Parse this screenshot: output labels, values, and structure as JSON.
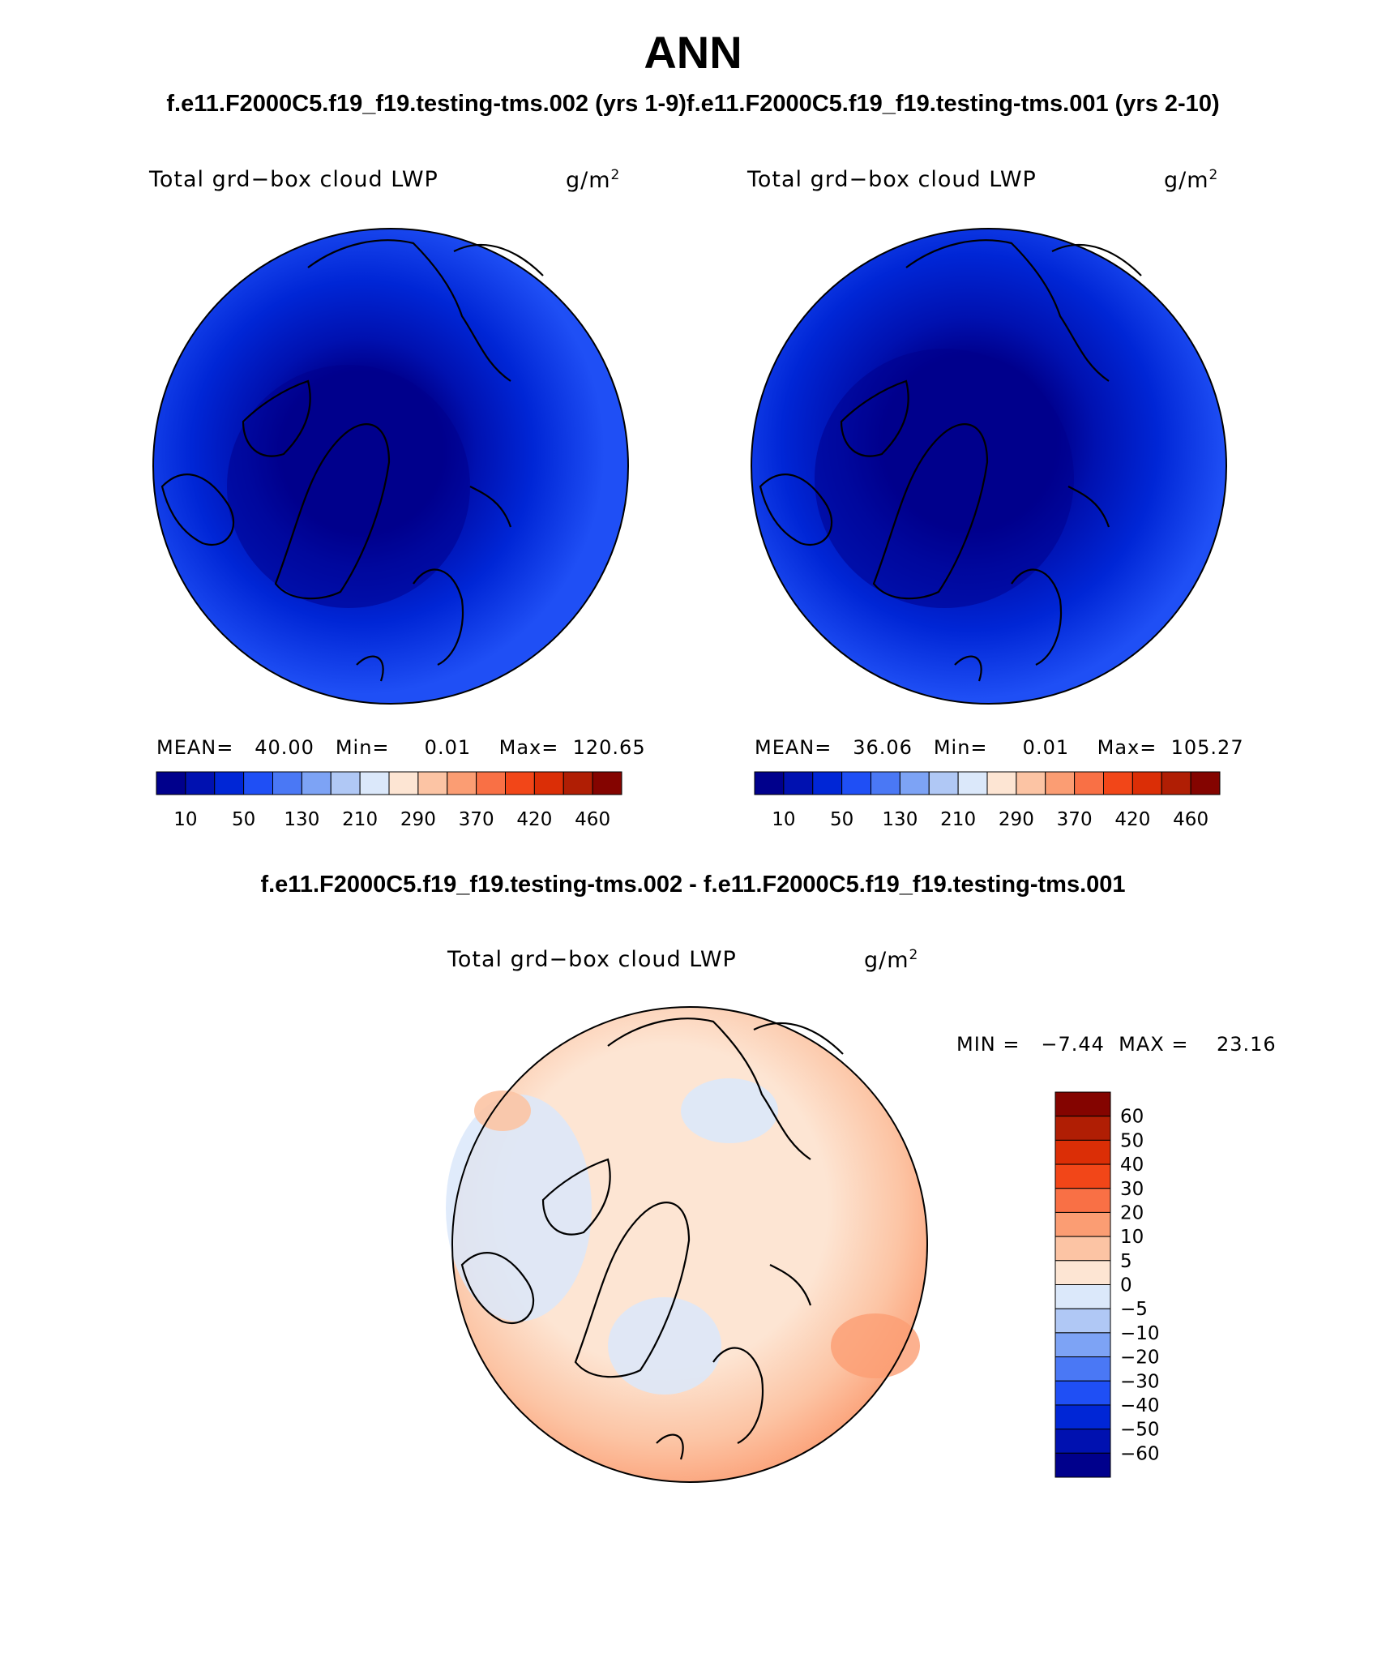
{
  "title": "ANN",
  "subtitle": "f.e11.F2000C5.f19_f19.testing-tms.002 (yrs 1-9)f.e11.F2000C5.f19_f19.testing-tms.001 (yrs 2-10)",
  "diff_title": "f.e11.F2000C5.f19_f19.testing-tms.002 - f.e11.F2000C5.f19_f19.testing-tms.001",
  "panels": [
    {
      "variable": "Total grd−box cloud LWP",
      "units": "g/m",
      "units_sup": "2",
      "stats": "MEAN=   40.00   Min=     0.01    Max=  120.65",
      "projection": "north-polar-stereographic",
      "fill": "blue"
    },
    {
      "variable": "Total grd−box cloud LWP",
      "units": "g/m",
      "units_sup": "2",
      "stats": "MEAN=   36.06   Min=     0.01    Max=  105.27",
      "projection": "north-polar-stereographic",
      "fill": "blue"
    },
    {
      "variable": "Total grd−box cloud LWP",
      "units": "g/m",
      "units_sup": "2",
      "stats": "MIN =   −7.44  MAX =    23.16",
      "projection": "north-polar-stereographic",
      "fill": "diverging"
    }
  ],
  "abs_colorbar": {
    "labels": [
      "10",
      "50",
      "130",
      "210",
      "290",
      "370",
      "420",
      "460"
    ],
    "colors": [
      "#00008c",
      "#0011b0",
      "#0026d6",
      "#1f4ff5",
      "#4a78f5",
      "#7da3f5",
      "#b0c8f5",
      "#dbe8fa",
      "#fde5d3",
      "#fcc4a4",
      "#fb9d73",
      "#f97045",
      "#f24618",
      "#db2e06",
      "#b01e04",
      "#840400"
    ]
  },
  "diff_colorbar": {
    "labels": [
      "60",
      "50",
      "40",
      "30",
      "20",
      "10",
      "5",
      "0",
      "−5",
      "−10",
      "−20",
      "−30",
      "−40",
      "−50",
      "−60"
    ],
    "colors": [
      "#840400",
      "#b01e04",
      "#db2e06",
      "#f24618",
      "#f97045",
      "#fb9d73",
      "#fcc4a4",
      "#fde5d3",
      "#dbe8fa",
      "#b0c8f5",
      "#7da3f5",
      "#4a78f5",
      "#1f4ff5",
      "#0026d6",
      "#0011b0",
      "#00008c"
    ]
  }
}
